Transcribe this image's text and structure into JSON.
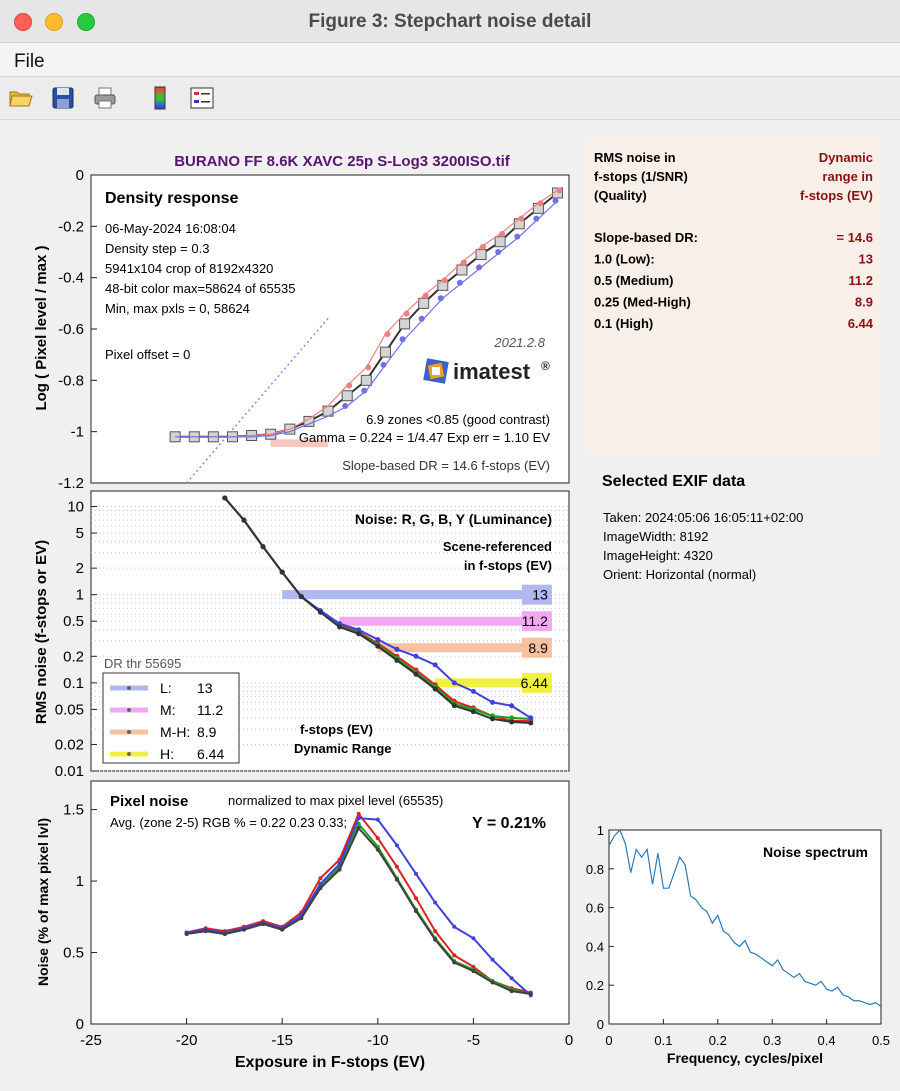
{
  "window": {
    "title": "Figure 3: Stepchart noise detail",
    "menu": [
      "File"
    ]
  },
  "toolbar": [
    "open-icon",
    "save-icon",
    "print-icon",
    "colorbar-icon",
    "legend-icon"
  ],
  "figure_title": "BURANO FF 8.6K XAVC 25p S-Log3 3200ISO.tif",
  "info_panel": {
    "col1_line1": "RMS noise in",
    "col1_line2": "f-stops (1/SNR)",
    "col1_line3": "(Quality)",
    "col2_line1": "Dynamic",
    "col2_line2": "range in",
    "col2_line3": "f-stops (EV)",
    "rows": [
      {
        "label": "Slope-based DR:",
        "value": "= 14.6"
      },
      {
        "label": "1.0   (Low):",
        "value": "13"
      },
      {
        "label": "0.5   (Medium)",
        "value": "11.2"
      },
      {
        "label": "0.25 (Med-High)",
        "value": "8.9"
      },
      {
        "label": "0.1   (High)",
        "value": "6.44"
      }
    ]
  },
  "exif": {
    "title": "Selected EXIF data",
    "lines": [
      "Taken: 2024:05:06 16:05:11+02:00",
      "ImageWidth:  8192",
      "ImageHeight:  4320",
      "Orient: Horizontal (normal)"
    ]
  },
  "chart_data": [
    {
      "type": "line",
      "title": "Density response",
      "ylabel": "Log ( Pixel level / max )",
      "xlim": [
        -25,
        0
      ],
      "ylim": [
        -1.2,
        0
      ],
      "yticks": [
        "0",
        "-0.2",
        "-0.4",
        "-0.6",
        "-0.8",
        "-1",
        "-1.2"
      ],
      "annotations": [
        "06-May-2024 16:08:04",
        "Density step = 0.3",
        "5941x104 crop of 8192x4320",
        "48-bit color  max=58624 of 65535",
        "Min, max pxls = 0, 58624",
        "Pixel offset = 0",
        "2021.2.8",
        "imatest",
        "6.9 zones <0.85 (good contrast)",
        "Gamma = 0.224 = 1/4.47   Exp err = 1.10 EV",
        "Slope-based DR = 14.6 f-stops (EV)"
      ],
      "x": [
        -20.6,
        -19.6,
        -18.6,
        -17.6,
        -16.6,
        -15.6,
        -14.6,
        -13.6,
        -12.6,
        -11.6,
        -10.6,
        -9.6,
        -8.6,
        -7.6,
        -6.6,
        -5.6,
        -4.6,
        -3.6,
        -2.6,
        -1.6,
        -0.6
      ],
      "series": [
        {
          "name": "Y",
          "color": "#333333",
          "values": [
            -1.02,
            -1.02,
            -1.02,
            -1.02,
            -1.015,
            -1.01,
            -0.99,
            -0.96,
            -0.92,
            -0.86,
            -0.8,
            -0.69,
            -0.58,
            -0.5,
            -0.43,
            -0.37,
            -0.31,
            -0.26,
            -0.19,
            -0.13,
            -0.07
          ]
        },
        {
          "name": "R",
          "color": "#f08080",
          "values": [
            -1.02,
            -1.02,
            -1.02,
            -1.02,
            -1.015,
            -1.01,
            -0.99,
            -0.95,
            -0.9,
            -0.82,
            -0.75,
            -0.62,
            -0.54,
            -0.47,
            -0.41,
            -0.34,
            -0.28,
            -0.23,
            -0.17,
            -0.11,
            -0.06
          ]
        },
        {
          "name": "B",
          "color": "#7070e8",
          "values": [
            -1.02,
            -1.02,
            -1.02,
            -1.02,
            -1.02,
            -1.015,
            -1.0,
            -0.97,
            -0.94,
            -0.9,
            -0.84,
            -0.74,
            -0.64,
            -0.56,
            -0.48,
            -0.42,
            -0.36,
            -0.3,
            -0.24,
            -0.17,
            -0.1
          ]
        }
      ]
    },
    {
      "type": "line",
      "title": "Noise: R, G, B, Y (Luminance)",
      "subtitle": [
        "Scene-referenced",
        "in f-stops (EV)"
      ],
      "ylabel": "RMS noise (f-stops or EV)",
      "ylog": true,
      "ylim": [
        0.01,
        15
      ],
      "xlim": [
        -25,
        0
      ],
      "yticks": [
        "10",
        "5",
        "2",
        "1",
        "0.5",
        "0.2",
        "0.1",
        "0.05",
        "0.02",
        "0.01"
      ],
      "ytick_values": [
        10,
        5,
        2,
        1,
        0.5,
        0.2,
        0.1,
        0.05,
        0.02,
        0.01
      ],
      "x": [
        -18,
        -17,
        -16,
        -15,
        -14,
        -13,
        -12,
        -11,
        -10,
        -9,
        -8,
        -7,
        -6,
        -5,
        -4,
        -3,
        -2
      ],
      "series": [
        {
          "name": "R",
          "color": "#e02020",
          "values": [
            12.5,
            7,
            3.5,
            1.8,
            0.95,
            0.65,
            0.45,
            0.38,
            0.28,
            0.2,
            0.14,
            0.095,
            0.062,
            0.052,
            0.042,
            0.037,
            0.037
          ]
        },
        {
          "name": "G",
          "color": "#20a020",
          "values": [
            12.5,
            7,
            3.5,
            1.8,
            0.95,
            0.64,
            0.44,
            0.37,
            0.27,
            0.19,
            0.13,
            0.09,
            0.058,
            0.05,
            0.042,
            0.04,
            0.039
          ]
        },
        {
          "name": "B",
          "color": "#4040e0",
          "values": [
            12.5,
            7,
            3.5,
            1.8,
            0.95,
            0.66,
            0.47,
            0.4,
            0.31,
            0.24,
            0.2,
            0.16,
            0.1,
            0.08,
            0.06,
            0.055,
            0.04
          ]
        },
        {
          "name": "Y",
          "color": "#333333",
          "values": [
            12.5,
            7,
            3.5,
            1.8,
            0.95,
            0.63,
            0.43,
            0.36,
            0.26,
            0.18,
            0.125,
            0.085,
            0.055,
            0.047,
            0.039,
            0.036,
            0.035
          ]
        }
      ],
      "dr_bars": [
        {
          "label": "13",
          "threshold": 1.0,
          "color": "#b0b8f0",
          "x_start": -15,
          "x_end": -1
        },
        {
          "label": "11.2",
          "threshold": 0.5,
          "color": "#f0a8f0",
          "x_start": -12,
          "x_end": -1
        },
        {
          "label": "8.9",
          "threshold": 0.25,
          "color": "#f7c0a0",
          "x_start": -10,
          "x_end": -1
        },
        {
          "label": "6.44",
          "threshold": 0.1,
          "color": "#f0f040",
          "x_start": -7,
          "x_end": -1
        }
      ],
      "legend": {
        "header": "DR thr 55695",
        "entries": [
          {
            "key": "L:",
            "value": "13",
            "color": "#b0b8f0"
          },
          {
            "key": "M:",
            "value": "11.2",
            "color": "#f0a8f0"
          },
          {
            "key": "M-H:",
            "value": "8.9",
            "color": "#f7c0a0"
          },
          {
            "key": "H:",
            "value": "6.44",
            "color": "#f0f040"
          }
        ]
      },
      "footer": [
        "f-stops (EV)",
        "Dynamic Range"
      ]
    },
    {
      "type": "line",
      "title": "Pixel noise",
      "subtitle": "normalized to max pixel level (65535)",
      "stats": "Avg. (zone 2-5) RGB % = 0.22  0.23  0.33;",
      "y_value": "Y = 0.21%",
      "xlabel": "Exposure in F-stops (EV)",
      "ylabel": "Noise (% of max pixel lvl)",
      "xlim": [
        -25,
        0
      ],
      "ylim": [
        0,
        1.7
      ],
      "xticks": [
        -25,
        -20,
        -15,
        -10,
        -5,
        0
      ],
      "yticks": [
        0,
        0.5,
        1,
        1.5
      ],
      "x": [
        -20,
        -19,
        -18,
        -17,
        -16,
        -15,
        -14,
        -13,
        -12,
        -11,
        -10,
        -9,
        -8,
        -7,
        -6,
        -5,
        -4,
        -3,
        -2
      ],
      "series": [
        {
          "name": "R",
          "color": "#e02020",
          "values": [
            0.64,
            0.67,
            0.65,
            0.68,
            0.72,
            0.68,
            0.78,
            1.02,
            1.15,
            1.47,
            1.3,
            1.1,
            0.88,
            0.65,
            0.48,
            0.4,
            0.3,
            0.25,
            0.22
          ]
        },
        {
          "name": "G",
          "color": "#20a020",
          "values": [
            0.63,
            0.65,
            0.63,
            0.66,
            0.7,
            0.66,
            0.75,
            0.96,
            1.1,
            1.4,
            1.24,
            1.02,
            0.8,
            0.6,
            0.44,
            0.38,
            0.3,
            0.24,
            0.21
          ]
        },
        {
          "name": "B",
          "color": "#4040e0",
          "values": [
            0.64,
            0.66,
            0.64,
            0.67,
            0.71,
            0.67,
            0.76,
            0.98,
            1.12,
            1.44,
            1.43,
            1.25,
            1.05,
            0.85,
            0.68,
            0.6,
            0.45,
            0.32,
            0.2
          ]
        },
        {
          "name": "Y",
          "color": "#404040",
          "values": [
            0.63,
            0.65,
            0.63,
            0.66,
            0.7,
            0.66,
            0.74,
            0.95,
            1.08,
            1.37,
            1.22,
            1.01,
            0.79,
            0.59,
            0.43,
            0.37,
            0.29,
            0.23,
            0.21
          ]
        }
      ]
    },
    {
      "type": "line",
      "title": "Noise spectrum",
      "xlabel": "Frequency, cycles/pixel",
      "xlim": [
        0,
        0.5
      ],
      "ylim": [
        0,
        1
      ],
      "xticks": [
        0,
        0.1,
        0.2,
        0.3,
        0.4,
        0.5
      ],
      "yticks": [
        0,
        0.2,
        0.4,
        0.6,
        0.8,
        1
      ],
      "x": [
        0,
        0.01,
        0.02,
        0.03,
        0.04,
        0.05,
        0.06,
        0.07,
        0.08,
        0.09,
        0.1,
        0.11,
        0.12,
        0.13,
        0.14,
        0.15,
        0.16,
        0.17,
        0.18,
        0.19,
        0.2,
        0.21,
        0.22,
        0.23,
        0.24,
        0.25,
        0.26,
        0.27,
        0.28,
        0.29,
        0.3,
        0.31,
        0.32,
        0.33,
        0.34,
        0.35,
        0.36,
        0.37,
        0.38,
        0.39,
        0.4,
        0.41,
        0.42,
        0.43,
        0.44,
        0.45,
        0.46,
        0.47,
        0.48,
        0.49,
        0.5
      ],
      "values": [
        0.92,
        0.97,
        1.0,
        0.93,
        0.78,
        0.9,
        0.86,
        0.9,
        0.72,
        0.88,
        0.7,
        0.7,
        0.78,
        0.86,
        0.82,
        0.66,
        0.64,
        0.6,
        0.58,
        0.52,
        0.56,
        0.48,
        0.46,
        0.42,
        0.4,
        0.43,
        0.37,
        0.36,
        0.34,
        0.32,
        0.3,
        0.33,
        0.28,
        0.26,
        0.24,
        0.26,
        0.22,
        0.21,
        0.2,
        0.22,
        0.18,
        0.17,
        0.19,
        0.15,
        0.14,
        0.12,
        0.12,
        0.11,
        0.1,
        0.11,
        0.09
      ]
    }
  ]
}
